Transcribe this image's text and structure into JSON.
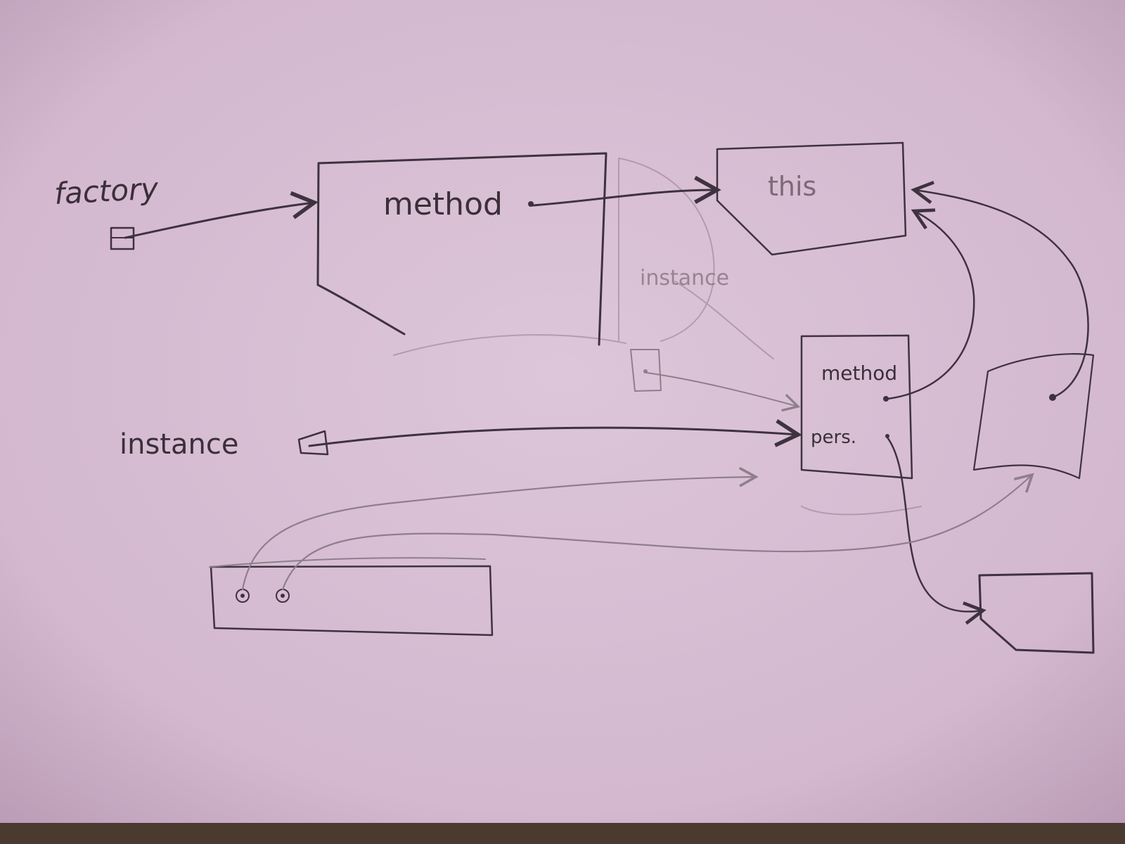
{
  "labels": {
    "factory": "factory",
    "method_main": "method",
    "this": "this",
    "instance_ghost": "instance",
    "method_small": "method",
    "pers": "pers.",
    "instance": "instance"
  },
  "colors": {
    "paper": "#d8c0d4",
    "ink": "#3f3240",
    "ink_light": "#8f7e8c"
  }
}
